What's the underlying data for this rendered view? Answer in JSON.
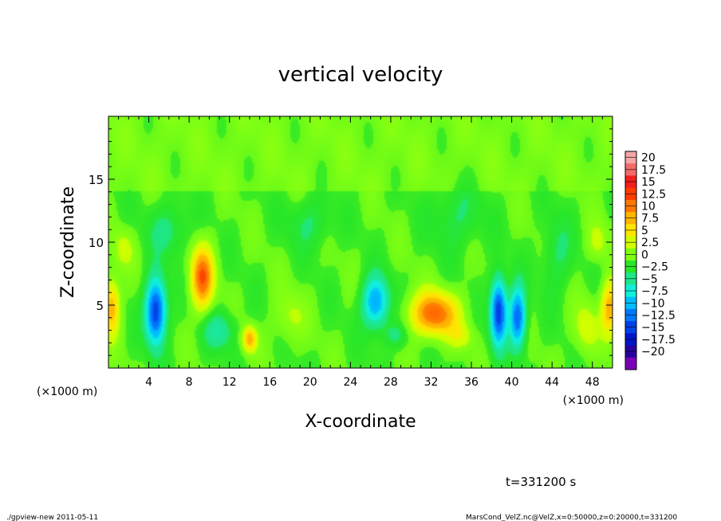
{
  "chart_data": {
    "type": "heatmap",
    "title": "vertical velocity",
    "xlabel": "X-coordinate",
    "ylabel": "Z-coordinate",
    "x_unit_left": "(×1000 m)",
    "x_unit_right": "(×1000 m)",
    "xlim": [
      0,
      50
    ],
    "ylim": [
      0,
      20
    ],
    "x_ticks": [
      4,
      8,
      12,
      16,
      20,
      24,
      28,
      32,
      36,
      40,
      44,
      48
    ],
    "y_ticks": [
      5,
      10,
      15
    ],
    "colorbar": {
      "labels": [
        "20",
        "17.5",
        "15",
        "12.5",
        "10",
        "7.5",
        "5",
        "2.5",
        "0",
        "−2.5",
        "−5",
        "−7.5",
        "−10",
        "−12.5",
        "−15",
        "−17.5",
        "−20"
      ],
      "colors": [
        "#f6a6a6",
        "#f36a6a",
        "#f21e1e",
        "#ff3c00",
        "#ff7800",
        "#ffb400",
        "#ffe600",
        "#d2ff00",
        "#7dff14",
        "#28e628",
        "#1ee68c",
        "#0ff0dc",
        "#00beff",
        "#0078ff",
        "#0041e6",
        "#0014c8",
        "#2800a0",
        "#7800b4"
      ]
    },
    "background_value": 0,
    "features": [
      {
        "x": 4.7,
        "z": 4.5,
        "rx": 1.0,
        "rz": 2.6,
        "w": -13.0
      },
      {
        "x": 9.3,
        "z": 7.2,
        "rx": 1.1,
        "rz": 2.4,
        "w": 11.0
      },
      {
        "x": 14.0,
        "z": 2.3,
        "rx": 0.7,
        "rz": 1.0,
        "w": 8.0
      },
      {
        "x": 11.0,
        "z": 3.0,
        "rx": 1.6,
        "rz": 1.5,
        "w": -4.0
      },
      {
        "x": 6.0,
        "z": 11.0,
        "rx": 2.0,
        "rz": 2.0,
        "w": -3.0
      },
      {
        "x": 26.5,
        "z": 5.2,
        "rx": 1.3,
        "rz": 2.0,
        "w": -9.0
      },
      {
        "x": 28.5,
        "z": 2.6,
        "rx": 1.2,
        "rz": 1.0,
        "w": -3.0
      },
      {
        "x": 32.3,
        "z": 4.3,
        "rx": 2.3,
        "rz": 1.7,
        "w": 11.0
      },
      {
        "x": 38.7,
        "z": 4.5,
        "rx": 0.8,
        "rz": 2.6,
        "w": -13.0
      },
      {
        "x": 40.6,
        "z": 4.0,
        "rx": 0.8,
        "rz": 2.4,
        "w": -11.0
      },
      {
        "x": 0.3,
        "z": 4.8,
        "rx": 0.8,
        "rz": 2.2,
        "w": 8.0
      },
      {
        "x": 49.7,
        "z": 4.8,
        "rx": 0.8,
        "rz": 2.2,
        "w": 8.0
      },
      {
        "x": 47.3,
        "z": 3.2,
        "rx": 1.2,
        "rz": 2.0,
        "w": 3.5
      },
      {
        "x": 20.0,
        "z": 11.5,
        "rx": 2.2,
        "rz": 2.0,
        "w": -2.5
      },
      {
        "x": 34.5,
        "z": 12.0,
        "rx": 2.5,
        "rz": 2.5,
        "w": -2.5
      },
      {
        "x": 44.5,
        "z": 9.0,
        "rx": 1.5,
        "rz": 3.0,
        "w": -2.5
      },
      {
        "x": 18.0,
        "z": 4.0,
        "rx": 1.5,
        "rz": 2.0,
        "w": 2.5
      },
      {
        "x": 35.0,
        "z": 2.5,
        "rx": 1.2,
        "rz": 1.0,
        "w": 3.0
      },
      {
        "x": 1.5,
        "z": 9.5,
        "rx": 1.0,
        "rz": 1.5,
        "w": 3.0
      },
      {
        "x": 48.5,
        "z": 10.0,
        "rx": 1.0,
        "rz": 1.5,
        "w": 3.0
      }
    ]
  },
  "footer": {
    "time_label": "t=331200 s",
    "left_note": "./gpview-new  2011-05-11",
    "right_note": "MarsCond_VelZ.nc@VelZ,x=0:50000,z=0:20000,t=331200"
  }
}
